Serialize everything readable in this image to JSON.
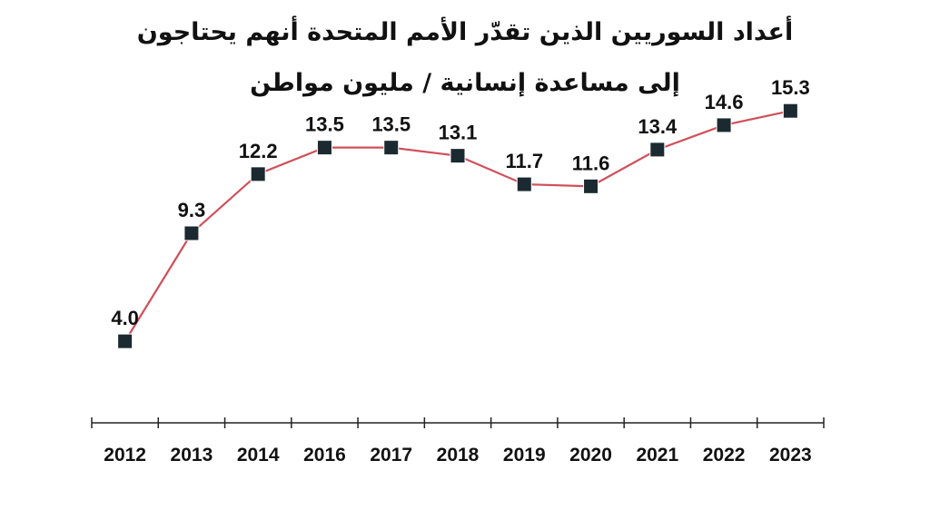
{
  "chart_data": {
    "type": "line",
    "title": "أعداد السوريين الذين تقدّر الأمم المتحدة أنهم يحتاجون",
    "subtitle": "إلى مساعدة إنسانية / مليون مواطن",
    "categories": [
      "2012",
      "2013",
      "2014",
      "2016",
      "2017",
      "2018",
      "2019",
      "2020",
      "2021",
      "2022",
      "2023"
    ],
    "series": [
      {
        "values": [
          4.0,
          9.3,
          12.2,
          13.5,
          13.5,
          13.1,
          11.7,
          11.6,
          13.4,
          14.6,
          15.3
        ],
        "labels": [
          "4.0",
          "9.3",
          "12.2",
          "13.5",
          "13.5",
          "13.1",
          "11.7",
          "11.6",
          "13.4",
          "14.6",
          "15.3"
        ]
      }
    ],
    "xlabel": "",
    "ylabel": "",
    "ylim": [
      0,
      17
    ],
    "grid": false,
    "line_color": "#d0505a",
    "marker_color": "#1b2a30",
    "marker": "square"
  }
}
